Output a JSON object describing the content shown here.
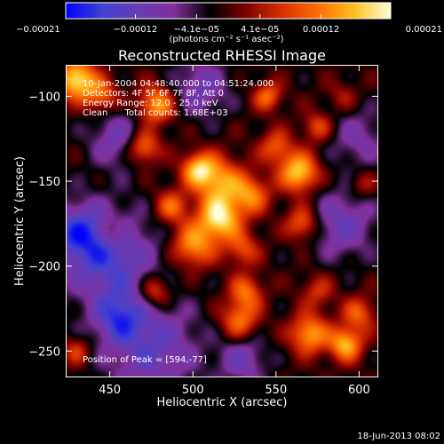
{
  "chart_data": {
    "type": "heatmap",
    "title": "Reconstructed RHESSI Image",
    "xlabel": "Heliocentric X (arcsec)",
    "ylabel": "Heliocentric Y (arcsec)",
    "xlim": [
      424,
      611
    ],
    "ylim": [
      -265,
      -82
    ],
    "x_ticks": [
      450,
      500,
      550,
      600
    ],
    "x_tick_labels": [
      "450",
      "500",
      "550",
      "600"
    ],
    "y_ticks": [
      -100,
      -150,
      -200,
      -250
    ],
    "y_tick_labels": [
      "−100",
      "−150",
      "−200",
      "−250"
    ],
    "colorbar": {
      "range": [
        -0.00021,
        0.00021
      ],
      "ticks": [
        -0.00021,
        -0.00012,
        -4.1e-05,
        4.1e-05,
        0.00012,
        0.00021
      ],
      "tick_labels": [
        "−0.00021",
        "−0.00012",
        "−4.1e−05",
        "4.1e−05",
        "0.00012",
        "0.00021"
      ],
      "unit_label": "(photons cm⁻² s⁻¹ asec⁻²)",
      "colormap": [
        "#0000ff",
        "#4040d0",
        "#6a3cb4",
        "#80309c",
        "#000000",
        "#800000",
        "#d83000",
        "#ff7000",
        "#ffc020",
        "#ffffd8"
      ]
    },
    "annotations": [
      "10-Jan-2004 04:48:40.000 to 04:51:24.000",
      "Detectors: 4F 5F 6F 7F 8F, Att 0",
      "Energy Range: 12.0 - 25.0 keV",
      "Clean      Total counts: 1.68E+03"
    ],
    "peak_label": "Position of Peak = [594,-77]",
    "sources": [
      {
        "x": 430,
        "y": -90,
        "sigma": 8,
        "amp": 1.0
      },
      {
        "x": 445,
        "y": -100,
        "sigma": 7,
        "amp": 0.55
      },
      {
        "x": 478,
        "y": -105,
        "sigma": 8,
        "amp": 0.75
      },
      {
        "x": 470,
        "y": -130,
        "sigma": 7,
        "amp": 0.7
      },
      {
        "x": 503,
        "y": -143,
        "sigma": 7,
        "amp": 0.75
      },
      {
        "x": 487,
        "y": -165,
        "sigma": 7,
        "amp": 0.55
      },
      {
        "x": 516,
        "y": -150,
        "sigma": 10,
        "amp": 0.7
      },
      {
        "x": 516,
        "y": -172,
        "sigma": 9,
        "amp": 0.95
      },
      {
        "x": 535,
        "y": -158,
        "sigma": 8,
        "amp": 0.6
      },
      {
        "x": 500,
        "y": -188,
        "sigma": 9,
        "amp": 0.7
      },
      {
        "x": 550,
        "y": -130,
        "sigma": 7,
        "amp": 0.5
      },
      {
        "x": 564,
        "y": -145,
        "sigma": 8,
        "amp": 0.9
      },
      {
        "x": 566,
        "y": -175,
        "sigma": 7,
        "amp": 0.6
      },
      {
        "x": 530,
        "y": -190,
        "sigma": 7,
        "amp": 0.45
      },
      {
        "x": 575,
        "y": -118,
        "sigma": 6,
        "amp": 0.45
      },
      {
        "x": 602,
        "y": -152,
        "sigma": 6,
        "amp": 0.3
      },
      {
        "x": 545,
        "y": -100,
        "sigma": 6,
        "amp": 0.55
      },
      {
        "x": 590,
        "y": -100,
        "sigma": 6,
        "amp": 0.25
      },
      {
        "x": 452,
        "y": -180,
        "sigma": 6,
        "amp": 0.35
      },
      {
        "x": 477,
        "y": -215,
        "sigma": 7,
        "amp": 0.6
      },
      {
        "x": 532,
        "y": -215,
        "sigma": 7,
        "amp": 0.55
      },
      {
        "x": 575,
        "y": -215,
        "sigma": 7,
        "amp": 0.35
      },
      {
        "x": 600,
        "y": -228,
        "sigma": 7,
        "amp": 0.5
      },
      {
        "x": 570,
        "y": -240,
        "sigma": 8,
        "amp": 0.75
      },
      {
        "x": 592,
        "y": -246,
        "sigma": 7,
        "amp": 0.8
      },
      {
        "x": 528,
        "y": -232,
        "sigma": 8,
        "amp": 0.6
      },
      {
        "x": 430,
        "y": -250,
        "sigma": 6,
        "amp": 0.4
      }
    ],
    "background": [
      {
        "x": 450,
        "y": -195,
        "sigma": 20,
        "amp": -0.65
      },
      {
        "x": 475,
        "y": -248,
        "sigma": 20,
        "amp": -0.55
      },
      {
        "x": 455,
        "y": -125,
        "sigma": 12,
        "amp": -0.45
      },
      {
        "x": 430,
        "y": -180,
        "sigma": 12,
        "amp": -0.55
      },
      {
        "x": 505,
        "y": -95,
        "sigma": 12,
        "amp": -0.45
      },
      {
        "x": 590,
        "y": -175,
        "sigma": 14,
        "amp": -0.5
      },
      {
        "x": 600,
        "y": -125,
        "sigma": 12,
        "amp": -0.35
      },
      {
        "x": 530,
        "y": -255,
        "sigma": 10,
        "amp": -0.45
      },
      {
        "x": 455,
        "y": -230,
        "sigma": 10,
        "amp": -0.5
      }
    ]
  },
  "footer": {
    "timestamp": "18-Jun-2013 08:02"
  }
}
